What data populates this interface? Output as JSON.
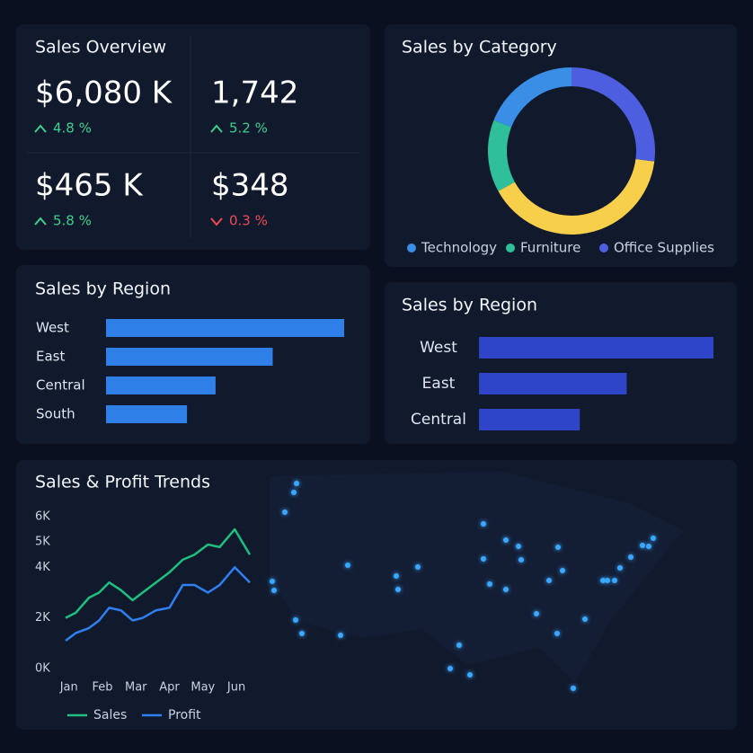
{
  "kpi_panel": {
    "title": "Sales Overview",
    "kpis": [
      {
        "value": "$6,080 K",
        "change": "4.8 %",
        "direction": "up"
      },
      {
        "value": "1,742",
        "change": "5.2 %",
        "direction": "up"
      },
      {
        "value": "$465 K",
        "change": "5.8 %",
        "direction": "up"
      },
      {
        "value": "$348",
        "change": "0.3 %",
        "direction": "down"
      }
    ]
  },
  "chart_data": [
    {
      "type": "pie",
      "title": "Sales by Category",
      "donut": true,
      "categories": [
        "Technology",
        "Furniture",
        null,
        "Office Supplies"
      ],
      "values": [
        19,
        14,
        40,
        27
      ],
      "colors": [
        "#3a8ee6",
        "#2fbf9a",
        "#f7cf4a",
        "#4d5fe0"
      ]
    },
    {
      "type": "bar",
      "orientation": "horizontal",
      "title": "Sales by Region",
      "categories": [
        "West",
        "East",
        "Central",
        "South"
      ],
      "values": [
        100,
        70,
        46,
        34
      ],
      "color": "#2f7fe8"
    },
    {
      "type": "bar",
      "orientation": "horizontal",
      "title": "Sales by Region",
      "categories": [
        "West",
        "East",
        "Central"
      ],
      "values": [
        100,
        63,
        43
      ],
      "color": "#2f45c9"
    },
    {
      "type": "line",
      "title": "Sales & Profit Trends",
      "x": [
        -0.1,
        0.2,
        0.6,
        0.9,
        1.2,
        1.55,
        1.9,
        2.2,
        2.6,
        3.0,
        3.4,
        3.75,
        4.15,
        4.5,
        4.95,
        5.4
      ],
      "xlim": [
        -0.1,
        5.4
      ],
      "xticks": [
        {
          "value": 0,
          "label": "Jan"
        },
        {
          "value": 1,
          "label": "Feb"
        },
        {
          "value": 2,
          "label": "Mar"
        },
        {
          "value": 3,
          "label": "Apr"
        },
        {
          "value": 4,
          "label": "May"
        },
        {
          "value": 5,
          "label": "Jun"
        }
      ],
      "ylim": [
        0,
        6
      ],
      "yticks": [
        {
          "value": 0,
          "label": "0K"
        },
        {
          "value": 2,
          "label": "2K"
        },
        {
          "value": 4,
          "label": "4K"
        },
        {
          "value": 5,
          "label": "5K"
        },
        {
          "value": 6,
          "label": "6K"
        }
      ],
      "series": [
        {
          "name": "Sales",
          "color": "#1fbf7f",
          "values": [
            2.0,
            2.2,
            2.8,
            3.0,
            3.4,
            3.1,
            2.7,
            3.0,
            3.4,
            3.8,
            4.3,
            4.5,
            4.9,
            4.8,
            5.5,
            4.5
          ]
        },
        {
          "name": "Profit",
          "color": "#2f7ff0",
          "values": [
            1.1,
            1.4,
            1.6,
            1.9,
            2.4,
            2.3,
            1.9,
            2.0,
            2.3,
            2.4,
            3.3,
            3.3,
            3.0,
            3.3,
            4.0,
            3.4
          ]
        }
      ]
    }
  ]
}
